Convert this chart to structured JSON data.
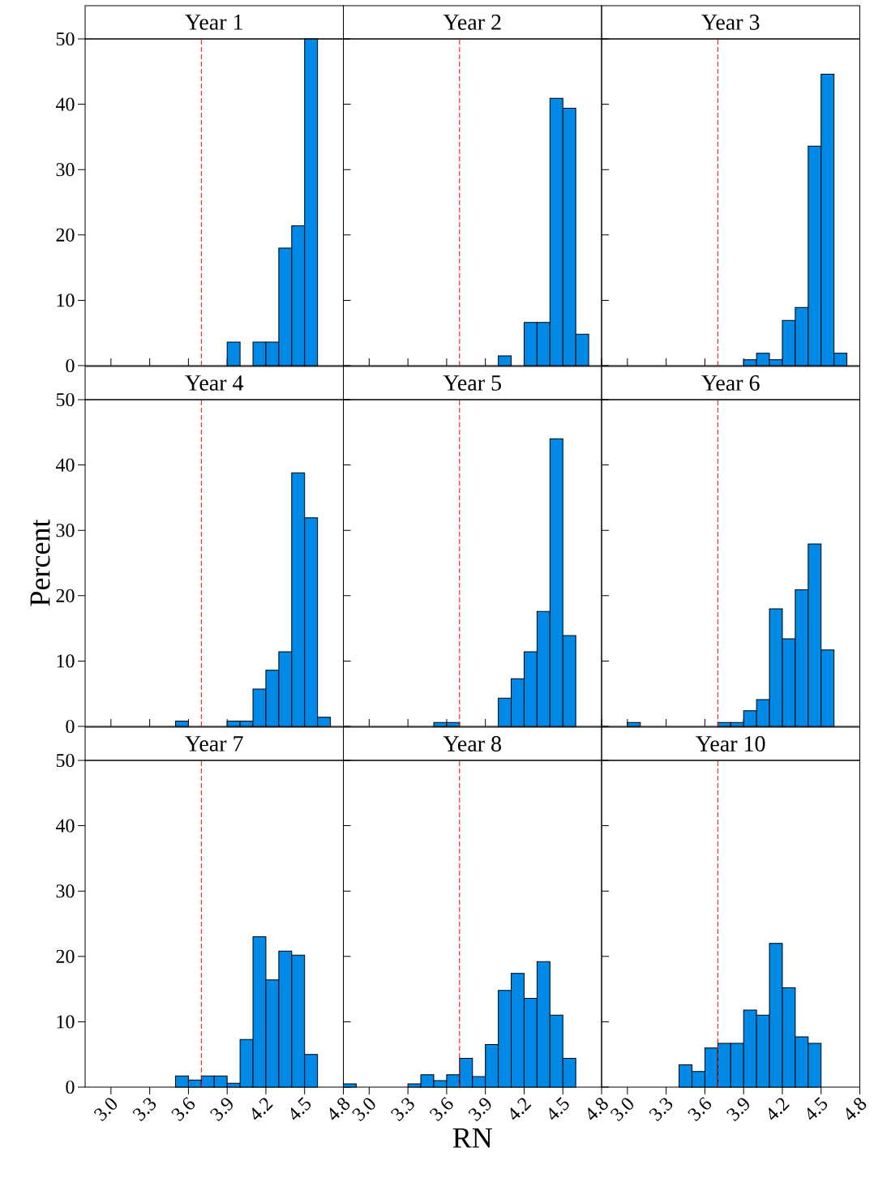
{
  "chart_data": [
    {
      "type": "histogram",
      "title": "Year 1",
      "bins": [
        3.9,
        4.0,
        4.1,
        4.2,
        4.3,
        4.4,
        4.5,
        4.6
      ],
      "values": [
        3.6,
        0,
        3.6,
        3.6,
        18.0,
        21.4,
        50.0
      ],
      "color": "#008ae8",
      "xlim": [
        2.8,
        4.8
      ],
      "xticks": [
        {
          "value": 3.0,
          "label": null
        },
        {
          "value": 3.3,
          "label": null
        },
        {
          "value": 3.6,
          "label": null
        },
        {
          "value": 3.9,
          "label": null
        },
        {
          "value": 4.2,
          "label": null
        },
        {
          "value": 4.5,
          "label": null
        },
        {
          "value": 4.8,
          "label": null
        }
      ],
      "ylim": [
        0,
        50
      ],
      "yticks": [
        0,
        10,
        20,
        30,
        40,
        50
      ],
      "ref_lines": [
        {
          "axis": "x",
          "value": 3.7,
          "color": "#ff0000",
          "line_style": "dashed"
        }
      ],
      "tick_labels": "y"
    },
    {
      "type": "histogram",
      "title": "Year 2",
      "bins": [
        4.0,
        4.1,
        4.2,
        4.3,
        4.4,
        4.5,
        4.6,
        4.7
      ],
      "values": [
        1.5,
        0,
        6.6,
        6.6,
        40.9,
        39.4,
        4.8
      ],
      "color": "#008ae8",
      "xlim": [
        2.8,
        4.8
      ],
      "xticks": [
        {
          "value": 3.0,
          "label": null
        },
        {
          "value": 3.3,
          "label": null
        },
        {
          "value": 3.6,
          "label": null
        },
        {
          "value": 3.9,
          "label": null
        },
        {
          "value": 4.2,
          "label": null
        },
        {
          "value": 4.5,
          "label": null
        },
        {
          "value": 4.8,
          "label": null
        }
      ],
      "ylim": [
        0,
        50
      ],
      "yticks": [
        {
          "value": 0,
          "label": null
        },
        {
          "value": 10,
          "label": null
        },
        {
          "value": 20,
          "label": null
        },
        {
          "value": 30,
          "label": null
        },
        {
          "value": 40,
          "label": null
        },
        {
          "value": 50,
          "label": null
        }
      ],
      "ref_lines": [
        {
          "axis": "x",
          "value": 3.7,
          "color": "#ff0000",
          "line_style": "dashed"
        }
      ],
      "tick_labels": false
    },
    {
      "type": "histogram",
      "title": "Year 3",
      "bins": [
        3.9,
        4.0,
        4.1,
        4.2,
        4.3,
        4.4,
        4.5,
        4.6,
        4.7
      ],
      "values": [
        0.9,
        1.9,
        0.9,
        6.9,
        8.9,
        33.6,
        44.6,
        1.9
      ],
      "color": "#008ae8",
      "xlim": [
        2.8,
        4.8
      ],
      "xticks": [
        {
          "value": 3.0,
          "label": null
        },
        {
          "value": 3.3,
          "label": null
        },
        {
          "value": 3.6,
          "label": null
        },
        {
          "value": 3.9,
          "label": null
        },
        {
          "value": 4.2,
          "label": null
        },
        {
          "value": 4.5,
          "label": null
        },
        {
          "value": 4.8,
          "label": null
        }
      ],
      "ylim": [
        0,
        50
      ],
      "yticks": [
        {
          "value": 0,
          "label": null
        },
        {
          "value": 10,
          "label": null
        },
        {
          "value": 20,
          "label": null
        },
        {
          "value": 30,
          "label": null
        },
        {
          "value": 40,
          "label": null
        },
        {
          "value": 50,
          "label": null
        }
      ],
      "ref_lines": [
        {
          "axis": "x",
          "value": 3.7,
          "color": "#ff0000",
          "line_style": "dashed"
        }
      ],
      "tick_labels": false
    },
    {
      "type": "histogram",
      "title": "Year 4",
      "ylabel": "Percent",
      "bins": [
        3.5,
        3.6,
        3.7,
        3.8,
        3.9,
        4.0,
        4.1,
        4.2,
        4.3,
        4.4,
        4.5,
        4.6,
        4.7
      ],
      "values": [
        0.8,
        0,
        0,
        0,
        0.8,
        0.8,
        5.7,
        8.6,
        11.4,
        38.8,
        31.9,
        1.4
      ],
      "color": "#008ae8",
      "xlim": [
        2.8,
        4.8
      ],
      "xticks": [
        {
          "value": 3.0,
          "label": null
        },
        {
          "value": 3.3,
          "label": null
        },
        {
          "value": 3.6,
          "label": null
        },
        {
          "value": 3.9,
          "label": null
        },
        {
          "value": 4.2,
          "label": null
        },
        {
          "value": 4.5,
          "label": null
        },
        {
          "value": 4.8,
          "label": null
        }
      ],
      "ylim": [
        0,
        50
      ],
      "yticks": [
        0,
        10,
        20,
        30,
        40,
        50
      ],
      "ref_lines": [
        {
          "axis": "x",
          "value": 3.7,
          "color": "#ff0000",
          "line_style": "dashed"
        }
      ],
      "tick_labels": "y"
    },
    {
      "type": "histogram",
      "title": "Year 5",
      "bins": [
        3.5,
        3.6,
        3.7,
        3.8,
        3.9,
        4.0,
        4.1,
        4.2,
        4.3,
        4.4,
        4.5,
        4.6
      ],
      "values": [
        0.6,
        0.6,
        0,
        0,
        0,
        4.3,
        7.3,
        11.4,
        17.6,
        44.0,
        13.9
      ],
      "color": "#008ae8",
      "xlim": [
        2.8,
        4.8
      ],
      "xticks": [
        {
          "value": 3.0,
          "label": null
        },
        {
          "value": 3.3,
          "label": null
        },
        {
          "value": 3.6,
          "label": null
        },
        {
          "value": 3.9,
          "label": null
        },
        {
          "value": 4.2,
          "label": null
        },
        {
          "value": 4.5,
          "label": null
        },
        {
          "value": 4.8,
          "label": null
        }
      ],
      "ylim": [
        0,
        50
      ],
      "yticks": [
        {
          "value": 0,
          "label": null
        },
        {
          "value": 10,
          "label": null
        },
        {
          "value": 20,
          "label": null
        },
        {
          "value": 30,
          "label": null
        },
        {
          "value": 40,
          "label": null
        },
        {
          "value": 50,
          "label": null
        }
      ],
      "ref_lines": [
        {
          "axis": "x",
          "value": 3.7,
          "color": "#ff0000",
          "line_style": "dashed"
        }
      ],
      "tick_labels": false
    },
    {
      "type": "histogram",
      "title": "Year 6",
      "bins": [
        3.0,
        3.1,
        3.2,
        3.3,
        3.4,
        3.5,
        3.6,
        3.7,
        3.8,
        3.9,
        4.0,
        4.1,
        4.2,
        4.3,
        4.4,
        4.5,
        4.6
      ],
      "values": [
        0.6,
        0,
        0,
        0,
        0,
        0,
        0,
        0.6,
        0.6,
        2.4,
        4.1,
        18.0,
        13.4,
        20.9,
        27.9,
        11.7
      ],
      "color": "#008ae8",
      "xlim": [
        2.8,
        4.8
      ],
      "xticks": [
        {
          "value": 3.0,
          "label": null
        },
        {
          "value": 3.3,
          "label": null
        },
        {
          "value": 3.6,
          "label": null
        },
        {
          "value": 3.9,
          "label": null
        },
        {
          "value": 4.2,
          "label": null
        },
        {
          "value": 4.5,
          "label": null
        },
        {
          "value": 4.8,
          "label": null
        }
      ],
      "ylim": [
        0,
        50
      ],
      "yticks": [
        {
          "value": 0,
          "label": null
        },
        {
          "value": 10,
          "label": null
        },
        {
          "value": 20,
          "label": null
        },
        {
          "value": 30,
          "label": null
        },
        {
          "value": 40,
          "label": null
        },
        {
          "value": 50,
          "label": null
        }
      ],
      "ref_lines": [
        {
          "axis": "x",
          "value": 3.7,
          "color": "#ff0000",
          "line_style": "dashed"
        }
      ],
      "tick_labels": false
    },
    {
      "type": "histogram",
      "title": "Year 7",
      "bins": [
        3.5,
        3.6,
        3.7,
        3.8,
        3.9,
        4.0,
        4.1,
        4.2,
        4.3,
        4.4,
        4.5,
        4.6
      ],
      "values": [
        1.7,
        1.1,
        1.7,
        1.7,
        0.6,
        7.3,
        23.0,
        16.4,
        20.8,
        20.2,
        5.0
      ],
      "color": "#008ae8",
      "xlim": [
        2.8,
        4.8
      ],
      "xticks": [
        {
          "value": 3.0,
          "label": "3.0"
        },
        {
          "value": 3.3,
          "label": "3.3"
        },
        {
          "value": 3.6,
          "label": "3.6"
        },
        {
          "value": 3.9,
          "label": "3.9"
        },
        {
          "value": 4.2,
          "label": "4.2"
        },
        {
          "value": 4.5,
          "label": "4.5"
        },
        {
          "value": 4.8,
          "label": "4.8"
        }
      ],
      "ylim": [
        0,
        50
      ],
      "yticks": [
        0,
        10,
        20,
        30,
        40,
        50
      ],
      "ref_lines": [
        {
          "axis": "x",
          "value": 3.7,
          "color": "#ff0000",
          "line_style": "dashed"
        }
      ]
    },
    {
      "type": "histogram",
      "title": "Year 8",
      "xlabel": "RN",
      "bins": [
        2.8,
        2.9,
        3.0,
        3.1,
        3.2,
        3.3,
        3.4,
        3.5,
        3.6,
        3.7,
        3.8,
        3.9,
        4.0,
        4.1,
        4.2,
        4.3,
        4.4,
        4.5,
        4.6
      ],
      "values": [
        0.5,
        0,
        0,
        0,
        0,
        0.5,
        1.9,
        1.0,
        1.9,
        4.4,
        1.6,
        6.5,
        14.8,
        17.4,
        13.6,
        19.2,
        11.0,
        4.4
      ],
      "color": "#008ae8",
      "xlim": [
        2.8,
        4.8
      ],
      "xticks": [
        {
          "value": 3.0,
          "label": "3.0"
        },
        {
          "value": 3.3,
          "label": "3.3"
        },
        {
          "value": 3.6,
          "label": "3.6"
        },
        {
          "value": 3.9,
          "label": "3.9"
        },
        {
          "value": 4.2,
          "label": "4.2"
        },
        {
          "value": 4.5,
          "label": "4.5"
        },
        {
          "value": 4.8,
          "label": "4.8"
        }
      ],
      "ylim": [
        0,
        50
      ],
      "yticks": [
        {
          "value": 0,
          "label": null
        },
        {
          "value": 10,
          "label": null
        },
        {
          "value": 20,
          "label": null
        },
        {
          "value": 30,
          "label": null
        },
        {
          "value": 40,
          "label": null
        },
        {
          "value": 50,
          "label": null
        }
      ],
      "ref_lines": [
        {
          "axis": "x",
          "value": 3.7,
          "color": "#ff0000",
          "line_style": "dashed"
        }
      ],
      "tick_labels": "x"
    },
    {
      "type": "histogram",
      "title": "Year 10",
      "bins": [
        3.4,
        3.5,
        3.6,
        3.7,
        3.8,
        3.9,
        4.0,
        4.1,
        4.2,
        4.3,
        4.4,
        4.5
      ],
      "values": [
        3.4,
        2.4,
        6.0,
        6.7,
        6.7,
        11.8,
        11.0,
        22.0,
        15.2,
        7.7,
        6.7
      ],
      "color": "#008ae8",
      "xlim": [
        2.8,
        4.8
      ],
      "xticks": [
        {
          "value": 3.0,
          "label": "3.0"
        },
        {
          "value": 3.3,
          "label": "3.3"
        },
        {
          "value": 3.6,
          "label": "3.6"
        },
        {
          "value": 3.9,
          "label": "3.9"
        },
        {
          "value": 4.2,
          "label": "4.2"
        },
        {
          "value": 4.5,
          "label": "4.5"
        },
        {
          "value": 4.8,
          "label": "4.8"
        }
      ],
      "ylim": [
        0,
        50
      ],
      "yticks": [
        {
          "value": 0,
          "label": null
        },
        {
          "value": 10,
          "label": null
        },
        {
          "value": 20,
          "label": null
        },
        {
          "value": 30,
          "label": null
        },
        {
          "value": 40,
          "label": null
        },
        {
          "value": 50,
          "label": null
        }
      ],
      "ref_lines": [
        {
          "axis": "x",
          "value": 3.7,
          "color": "#ff0000",
          "line_style": "dashed"
        }
      ],
      "tick_labels": "x"
    }
  ]
}
